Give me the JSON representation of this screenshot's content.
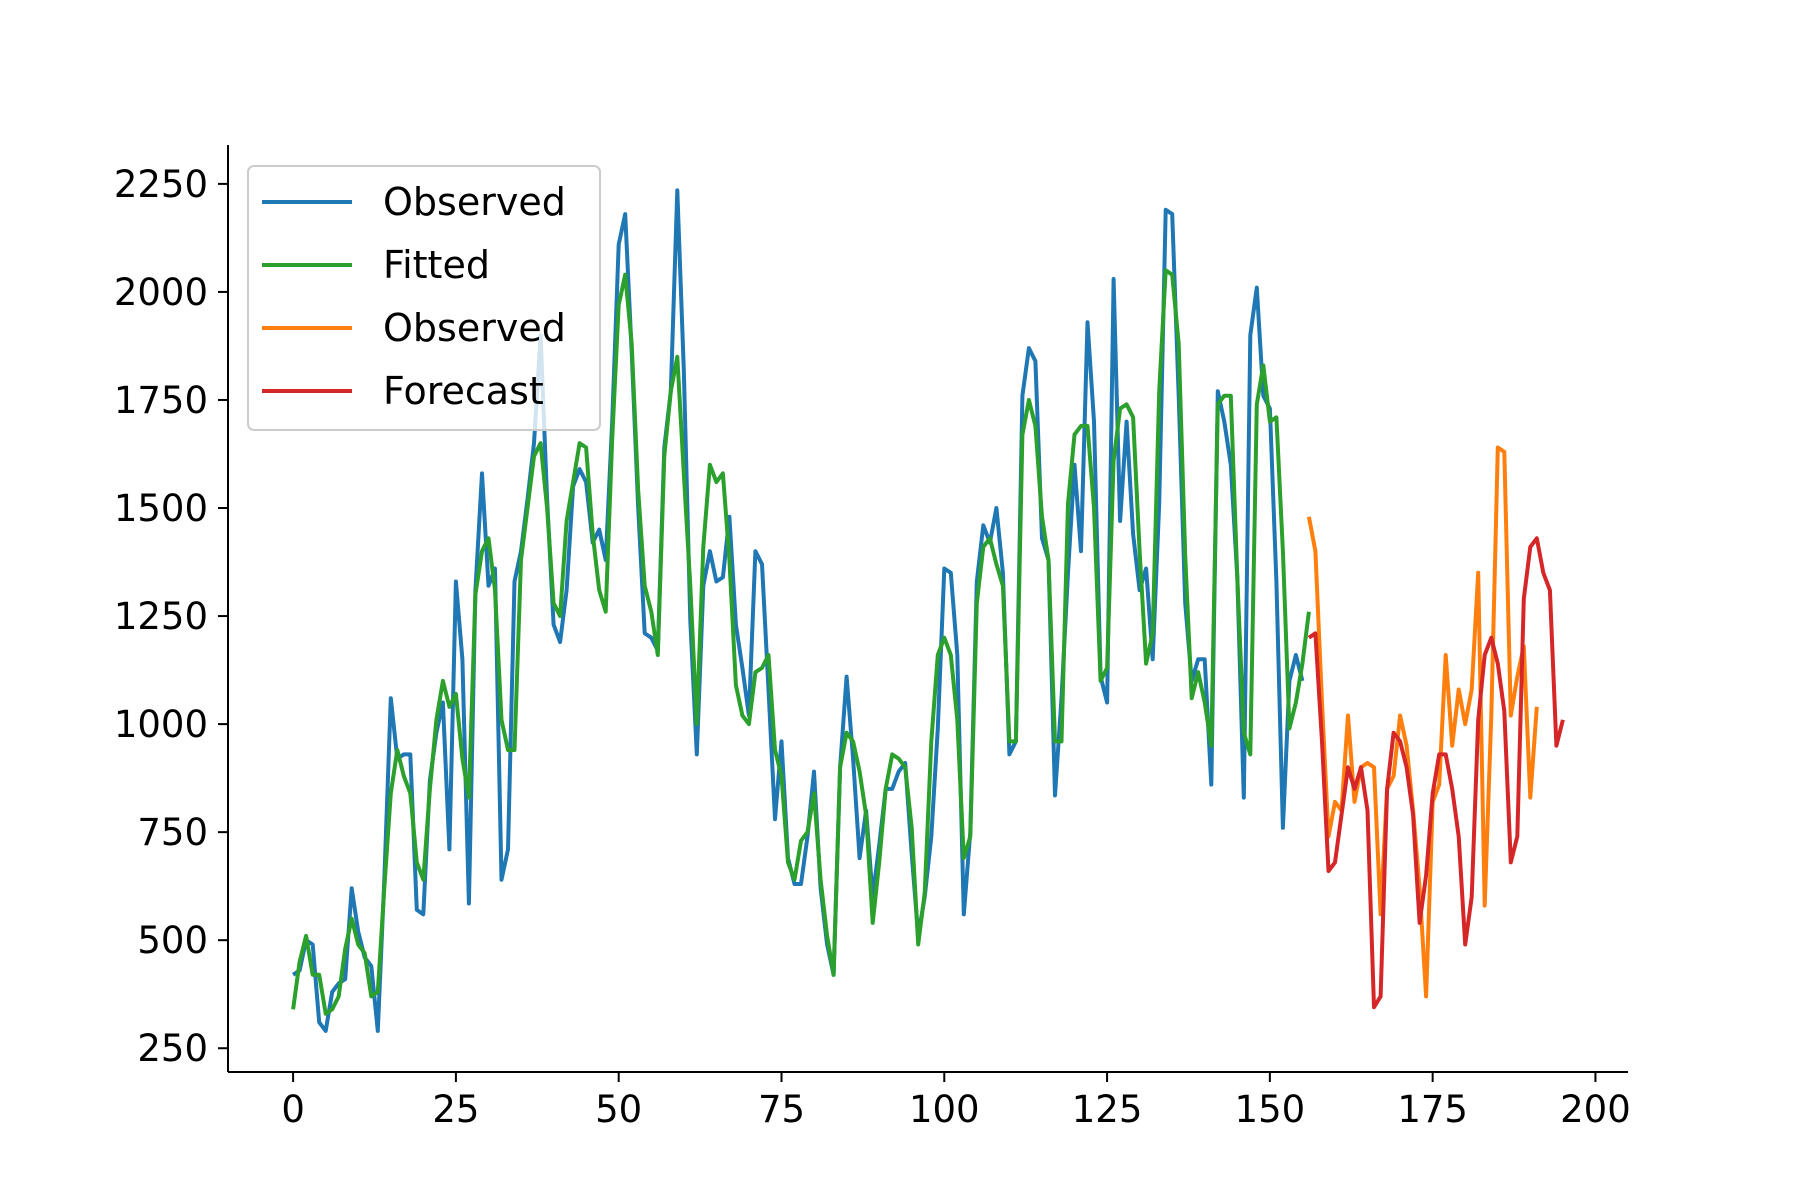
{
  "chart_data": {
    "type": "line",
    "title": "",
    "xlabel": "",
    "ylabel": "",
    "xlim": [
      -10,
      205
    ],
    "ylim": [
      195,
      2340
    ],
    "xticks": [
      0,
      25,
      50,
      75,
      100,
      125,
      150,
      175,
      200
    ],
    "yticks": [
      250,
      500,
      750,
      1000,
      1250,
      1500,
      1750,
      2000,
      2250
    ],
    "grid": false,
    "legend": {
      "position": "top-left"
    },
    "series": [
      {
        "name": "Observed",
        "color": "#1f77b4",
        "x_start": 0,
        "values": [
          420,
          430,
          500,
          490,
          310,
          290,
          380,
          400,
          410,
          620,
          520,
          460,
          440,
          290,
          640,
          1060,
          920,
          930,
          930,
          570,
          560,
          870,
          980,
          1050,
          710,
          1330,
          1150,
          585,
          1310,
          1580,
          1320,
          1360,
          640,
          710,
          1330,
          1400,
          1520,
          1650,
          1900,
          1520,
          1230,
          1190,
          1310,
          1550,
          1590,
          1560,
          1420,
          1450,
          1380,
          1700,
          2110,
          2180,
          1860,
          1500,
          1210,
          1200,
          1170,
          1640,
          1770,
          2235,
          1820,
          1240,
          930,
          1320,
          1400,
          1330,
          1340,
          1480,
          1230,
          1130,
          1020,
          1400,
          1370,
          1080,
          780,
          960,
          690,
          630,
          630,
          740,
          890,
          620,
          490,
          420,
          900,
          1110,
          920,
          690,
          800,
          600,
          720,
          850,
          850,
          890,
          910,
          700,
          510,
          600,
          740,
          990,
          1360,
          1350,
          1160,
          560,
          750,
          1330,
          1460,
          1420,
          1500,
          1350,
          930,
          960,
          1760,
          1870,
          1840,
          1430,
          1380,
          835,
          1060,
          1350,
          1600,
          1400,
          1930,
          1700,
          1110,
          1050,
          2030,
          1470,
          1700,
          1440,
          1310,
          1360,
          1150,
          1510,
          2190,
          2180,
          1760,
          1280,
          1100,
          1150,
          1150,
          860,
          1770,
          1700,
          1600,
          1340,
          830,
          1900,
          2010,
          1760,
          1730,
          1330,
          760,
          1100,
          1160,
          1100
        ]
      },
      {
        "name": "Fitted",
        "color": "#2ca02c",
        "x_start": 0,
        "values": [
          340,
          450,
          510,
          420,
          420,
          330,
          340,
          370,
          480,
          550,
          490,
          470,
          370,
          380,
          620,
          840,
          940,
          880,
          840,
          680,
          640,
          850,
          1010,
          1100,
          1040,
          1070,
          920,
          830,
          1300,
          1400,
          1430,
          1310,
          1010,
          940,
          940,
          1380,
          1500,
          1620,
          1650,
          1500,
          1280,
          1250,
          1470,
          1560,
          1650,
          1640,
          1440,
          1310,
          1260,
          1660,
          1970,
          2040,
          1880,
          1540,
          1320,
          1260,
          1160,
          1620,
          1770,
          1850,
          1580,
          1320,
          1000,
          1410,
          1600,
          1560,
          1580,
          1380,
          1090,
          1020,
          1000,
          1120,
          1130,
          1160,
          940,
          880,
          680,
          640,
          730,
          750,
          840,
          640,
          510,
          420,
          900,
          980,
          960,
          890,
          790,
          540,
          680,
          850,
          930,
          920,
          900,
          760,
          490,
          610,
          960,
          1160,
          1200,
          1160,
          1010,
          690,
          740,
          1280,
          1410,
          1430,
          1370,
          1320,
          960,
          960,
          1670,
          1750,
          1690,
          1480,
          1380,
          960,
          960,
          1510,
          1670,
          1690,
          1690,
          1500,
          1100,
          1130,
          1610,
          1730,
          1740,
          1710,
          1400,
          1140,
          1210,
          1770,
          2050,
          2040,
          1880,
          1390,
          1060,
          1120,
          1050,
          950,
          1740,
          1760,
          1760,
          1340,
          980,
          930,
          1740,
          1830,
          1700,
          1710,
          1400,
          990,
          1050,
          1140,
          1260
        ]
      },
      {
        "name": "Observed",
        "color": "#ff7f0e",
        "x_start": 156,
        "values": [
          1480,
          1400,
          1050,
          740,
          820,
          800,
          1020,
          820,
          900,
          910,
          900,
          560,
          850,
          880,
          1020,
          950,
          800,
          620,
          370,
          820,
          860,
          1160,
          950,
          1080,
          1000,
          1080,
          1350,
          580,
          1020,
          1640,
          1630,
          1020,
          1110,
          1180,
          830,
          1040
        ]
      },
      {
        "name": "Forecast",
        "color": "#d62728",
        "x_start": 156,
        "values": [
          1200,
          1210,
          960,
          660,
          680,
          790,
          900,
          850,
          900,
          800,
          345,
          370,
          850,
          980,
          960,
          900,
          790,
          540,
          650,
          840,
          930,
          930,
          850,
          740,
          490,
          600,
          1010,
          1160,
          1200,
          1140,
          1030,
          680,
          740,
          1290,
          1410,
          1430,
          1350,
          1310,
          950,
          1010
        ]
      }
    ]
  }
}
